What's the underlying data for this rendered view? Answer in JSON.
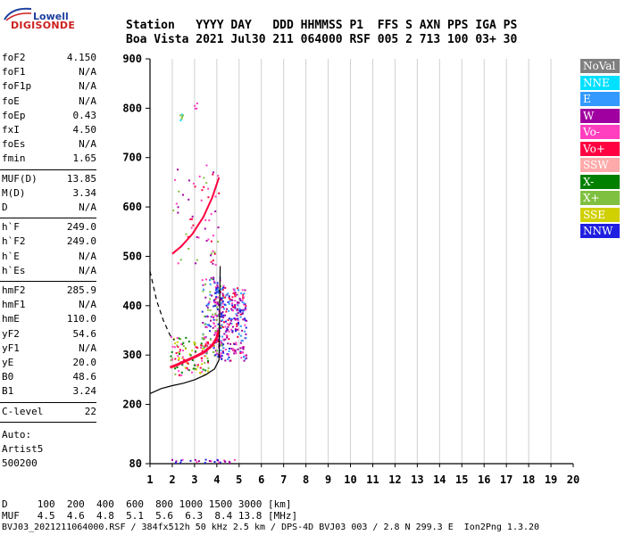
{
  "logo": {
    "line1": "Lowell",
    "line2": "DIGISONDE"
  },
  "header": {
    "labels": "Station   YYYY DAY   DDD HHMMSS P1  FFS S AXN PPS IGA PS",
    "values": "Boa Vista 2021 Jul30 211 064000 RSF 005 2 713 100 03+ 30"
  },
  "params": {
    "group1": [
      {
        "k": "foF2",
        "v": "4.150"
      },
      {
        "k": "foF1",
        "v": "N/A"
      },
      {
        "k": "foF1p",
        "v": "N/A"
      },
      {
        "k": "foE",
        "v": "N/A"
      },
      {
        "k": "foEp",
        "v": "0.43"
      },
      {
        "k": "fxI",
        "v": "4.50"
      },
      {
        "k": "foEs",
        "v": "N/A"
      },
      {
        "k": "fmin",
        "v": "1.65"
      }
    ],
    "group2": [
      {
        "k": "MUF(D)",
        "v": "13.85"
      },
      {
        "k": "M(D)",
        "v": "3.34"
      },
      {
        "k": "D",
        "v": "N/A"
      }
    ],
    "group3": [
      {
        "k": "h`F",
        "v": "249.0"
      },
      {
        "k": "h`F2",
        "v": "249.0"
      },
      {
        "k": "h`E",
        "v": "N/A"
      },
      {
        "k": "h`Es",
        "v": "N/A"
      }
    ],
    "group4": [
      {
        "k": "hmF2",
        "v": "285.9"
      },
      {
        "k": "hmF1",
        "v": "N/A"
      },
      {
        "k": "hmE",
        "v": "110.0"
      },
      {
        "k": "yF2",
        "v": "54.6"
      },
      {
        "k": "yF1",
        "v": "N/A"
      },
      {
        "k": "yE",
        "v": "20.0"
      },
      {
        "k": "B0",
        "v": "48.6"
      },
      {
        "k": "B1",
        "v": "3.24"
      }
    ],
    "group5": [
      {
        "k": "C-level",
        "v": "22"
      }
    ],
    "auto": [
      "Auto:",
      "Artist5",
      "500200"
    ]
  },
  "footer": {
    "d_line": "D     100  200  400  600  800 1000 1500 3000 [km]",
    "muf_line": "MUF   4.5  4.6  4.8  5.1  5.6  6.3  8.4 13.8 [MHz]",
    "info_line": "BVJ03_2021211064000.RSF / 384fx512h 50 kHz 2.5 km / DPS-4D BVJ03 003 / 2.8 N 299.3 E  Ion2Png 1.3.20"
  },
  "legend": [
    {
      "label": "NoVal",
      "color": "#808080"
    },
    {
      "label": "NNE",
      "color": "#00e0ff"
    },
    {
      "label": "E",
      "color": "#3399ff"
    },
    {
      "label": "W",
      "color": "#a000a0"
    },
    {
      "label": "Vo-",
      "color": "#ff3fbf"
    },
    {
      "label": "Vo+",
      "color": "#ff0040"
    },
    {
      "label": "SSW",
      "color": "#ffaaaa"
    },
    {
      "label": "X-",
      "color": "#008000"
    },
    {
      "label": "X+",
      "color": "#80c040"
    },
    {
      "label": "SSE",
      "color": "#d0d000"
    },
    {
      "label": "NNW",
      "color": "#2020e0"
    }
  ],
  "chart_data": {
    "type": "scatter",
    "xlabel": "",
    "ylabel": "",
    "xlim": [
      1,
      20
    ],
    "ylim": [
      80,
      900
    ],
    "xticks": [
      "1",
      "2",
      "3",
      "4",
      "5",
      "6",
      "7",
      "8",
      "9",
      "10",
      "11",
      "12",
      "13",
      "14",
      "15",
      "16",
      "17",
      "18",
      "19",
      "20"
    ],
    "yticks": [
      "80",
      "200",
      "300",
      "400",
      "500",
      "600",
      "700",
      "800",
      "900"
    ],
    "grid": "vertical",
    "traces": [
      {
        "name": "O-trace (F2)",
        "color": "#ff0040",
        "x": [
          1.9,
          2.2,
          2.6,
          3.0,
          3.4,
          3.8,
          4.0,
          4.1
        ],
        "y": [
          275,
          280,
          288,
          296,
          305,
          320,
          335,
          350
        ]
      },
      {
        "name": "upper echo",
        "color": "#ff0040",
        "x": [
          2.0,
          2.4,
          2.9,
          3.4,
          3.8,
          4.1
        ],
        "y": [
          505,
          520,
          545,
          580,
          620,
          660
        ]
      },
      {
        "name": "virtual height profile",
        "color": "#000000",
        "x": [
          1.0,
          1.5,
          2.0,
          2.5,
          3.0,
          3.5,
          3.9,
          4.1,
          4.15
        ],
        "y": [
          222,
          232,
          238,
          243,
          250,
          260,
          272,
          290,
          480
        ]
      },
      {
        "name": "dashed trace",
        "color": "#000000",
        "x": [
          1.0,
          1.3,
          1.6,
          1.9,
          2.1
        ],
        "y": [
          470,
          410,
          370,
          340,
          330
        ]
      }
    ]
  }
}
